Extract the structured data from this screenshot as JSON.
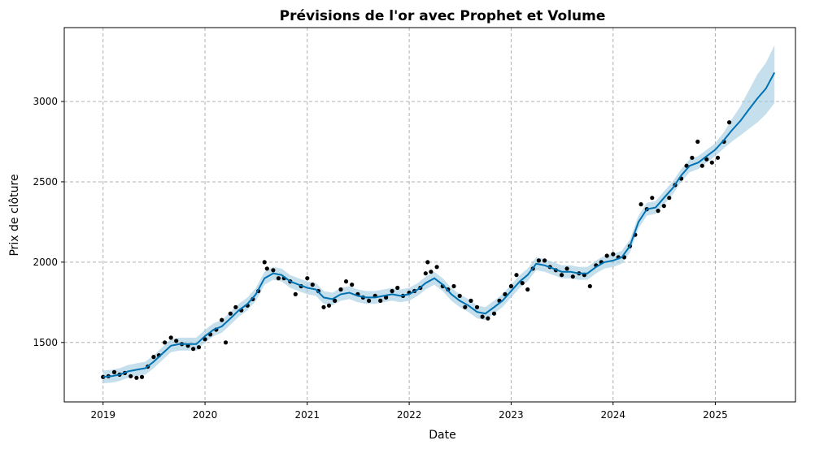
{
  "chart_data": {
    "type": "line",
    "title": "Prévisions de l'or avec Prophet et Volume",
    "xlabel": "Date",
    "ylabel": "Prix de clôture",
    "x_ticks": [
      "2019",
      "2020",
      "2021",
      "2022",
      "2023",
      "2024",
      "2025"
    ],
    "y_ticks": [
      "1500",
      "2000",
      "2500",
      "3000"
    ],
    "xlim": [
      "2018-08-15",
      "2025-10-15"
    ],
    "ylim": [
      1130,
      3460
    ],
    "grid": true,
    "colors": {
      "forecast": "#0072B2",
      "uncertainty": "#9ecae1",
      "observed": "#000000",
      "grid": "#b0b0b0"
    },
    "series": [
      {
        "kind": "forecast",
        "x": [
          "2019-01-01",
          "2019-02-01",
          "2019-03-01",
          "2019-04-01",
          "2019-05-01",
          "2019-06-01",
          "2019-07-01",
          "2019-08-01",
          "2019-09-01",
          "2019-10-01",
          "2019-11-01",
          "2019-12-01",
          "2020-01-01",
          "2020-02-01",
          "2020-03-01",
          "2020-04-01",
          "2020-05-01",
          "2020-06-01",
          "2020-07-01",
          "2020-08-01",
          "2020-09-01",
          "2020-10-01",
          "2020-11-01",
          "2020-12-01",
          "2021-01-01",
          "2021-02-01",
          "2021-03-01",
          "2021-04-01",
          "2021-05-01",
          "2021-06-01",
          "2021-07-01",
          "2021-08-01",
          "2021-09-01",
          "2021-10-01",
          "2021-11-01",
          "2021-12-01",
          "2022-01-01",
          "2022-02-01",
          "2022-03-01",
          "2022-04-01",
          "2022-05-01",
          "2022-06-01",
          "2022-07-01",
          "2022-08-01",
          "2022-09-01",
          "2022-10-01",
          "2022-11-01",
          "2022-12-01",
          "2023-01-01",
          "2023-02-01",
          "2023-03-01",
          "2023-04-01",
          "2023-05-01",
          "2023-06-01",
          "2023-07-01",
          "2023-08-01",
          "2023-09-01",
          "2023-10-01",
          "2023-11-01",
          "2023-12-01",
          "2024-01-01",
          "2024-02-01",
          "2024-03-01",
          "2024-04-01",
          "2024-05-01",
          "2024-06-01",
          "2024-07-01",
          "2024-08-01",
          "2024-09-01",
          "2024-10-01",
          "2024-11-01",
          "2024-12-01",
          "2025-01-01",
          "2025-02-01",
          "2025-03-01",
          "2025-04-01",
          "2025-05-01",
          "2025-06-01",
          "2025-07-01",
          "2025-08-01"
        ],
        "y": [
          1285,
          1290,
          1300,
          1320,
          1330,
          1340,
          1380,
          1430,
          1480,
          1490,
          1490,
          1490,
          1540,
          1580,
          1600,
          1650,
          1700,
          1740,
          1800,
          1900,
          1930,
          1920,
          1880,
          1860,
          1840,
          1830,
          1780,
          1770,
          1800,
          1810,
          1790,
          1780,
          1780,
          1790,
          1800,
          1790,
          1800,
          1830,
          1870,
          1900,
          1860,
          1800,
          1760,
          1730,
          1690,
          1680,
          1720,
          1760,
          1820,
          1880,
          1920,
          1990,
          1980,
          1960,
          1940,
          1940,
          1930,
          1930,
          1970,
          2000,
          2010,
          2030,
          2100,
          2250,
          2330,
          2340,
          2400,
          2460,
          2540,
          2600,
          2620,
          2660,
          2700,
          2760,
          2820,
          2880,
          2950,
          3020,
          3080,
          3180
        ],
        "lower": [
          1245,
          1250,
          1260,
          1280,
          1290,
          1300,
          1340,
          1390,
          1440,
          1450,
          1450,
          1450,
          1500,
          1540,
          1560,
          1610,
          1660,
          1700,
          1760,
          1860,
          1890,
          1880,
          1840,
          1820,
          1800,
          1790,
          1740,
          1730,
          1760,
          1770,
          1750,
          1740,
          1740,
          1750,
          1760,
          1750,
          1760,
          1790,
          1830,
          1860,
          1820,
          1760,
          1720,
          1690,
          1650,
          1640,
          1680,
          1720,
          1780,
          1840,
          1880,
          1950,
          1940,
          1920,
          1900,
          1900,
          1890,
          1890,
          1930,
          1960,
          1970,
          1990,
          2060,
          2210,
          2290,
          2300,
          2360,
          2420,
          2500,
          2560,
          2580,
          2620,
          2660,
          2710,
          2750,
          2790,
          2830,
          2870,
          2920,
          2990
        ],
        "upper": [
          1325,
          1330,
          1340,
          1360,
          1370,
          1380,
          1420,
          1470,
          1520,
          1530,
          1530,
          1530,
          1580,
          1620,
          1640,
          1690,
          1740,
          1780,
          1840,
          1940,
          1970,
          1960,
          1920,
          1900,
          1880,
          1870,
          1820,
          1810,
          1840,
          1850,
          1830,
          1820,
          1820,
          1830,
          1840,
          1830,
          1840,
          1870,
          1910,
          1940,
          1900,
          1840,
          1800,
          1770,
          1730,
          1720,
          1760,
          1800,
          1860,
          1920,
          1960,
          2030,
          2020,
          2000,
          1980,
          1980,
          1970,
          1970,
          2010,
          2040,
          2050,
          2070,
          2140,
          2290,
          2370,
          2380,
          2440,
          2500,
          2580,
          2640,
          2660,
          2700,
          2740,
          2810,
          2890,
          2970,
          3070,
          3170,
          3240,
          3350
        ]
      },
      {
        "kind": "observed",
        "x": [
          "2019-01-01",
          "2019-01-20",
          "2019-02-10",
          "2019-03-01",
          "2019-03-20",
          "2019-04-10",
          "2019-05-01",
          "2019-05-20",
          "2019-06-10",
          "2019-07-01",
          "2019-07-20",
          "2019-08-10",
          "2019-09-01",
          "2019-09-20",
          "2019-10-10",
          "2019-11-01",
          "2019-11-20",
          "2019-12-10",
          "2020-01-01",
          "2020-01-20",
          "2020-02-10",
          "2020-03-01",
          "2020-03-15",
          "2020-04-01",
          "2020-04-20",
          "2020-05-10",
          "2020-06-01",
          "2020-06-20",
          "2020-07-10",
          "2020-08-01",
          "2020-08-10",
          "2020-09-01",
          "2020-09-20",
          "2020-10-10",
          "2020-11-01",
          "2020-11-20",
          "2020-12-10",
          "2021-01-01",
          "2021-01-20",
          "2021-02-10",
          "2021-03-01",
          "2021-03-20",
          "2021-04-10",
          "2021-05-01",
          "2021-05-20",
          "2021-06-10",
          "2021-07-01",
          "2021-07-20",
          "2021-08-10",
          "2021-09-01",
          "2021-09-20",
          "2021-10-10",
          "2021-11-01",
          "2021-11-20",
          "2021-12-10",
          "2022-01-01",
          "2022-01-20",
          "2022-02-10",
          "2022-03-01",
          "2022-03-08",
          "2022-03-20",
          "2022-04-10",
          "2022-05-01",
          "2022-05-20",
          "2022-06-10",
          "2022-07-01",
          "2022-07-20",
          "2022-08-10",
          "2022-09-01",
          "2022-09-20",
          "2022-10-10",
          "2022-11-01",
          "2022-11-20",
          "2022-12-10",
          "2023-01-01",
          "2023-01-20",
          "2023-02-10",
          "2023-03-01",
          "2023-03-20",
          "2023-04-10",
          "2023-05-01",
          "2023-05-20",
          "2023-06-10",
          "2023-07-01",
          "2023-07-20",
          "2023-08-10",
          "2023-09-01",
          "2023-09-20",
          "2023-10-10",
          "2023-11-01",
          "2023-11-20",
          "2023-12-10",
          "2024-01-01",
          "2024-01-20",
          "2024-02-10",
          "2024-03-01",
          "2024-03-20",
          "2024-04-10",
          "2024-05-01",
          "2024-05-20",
          "2024-06-10",
          "2024-07-01",
          "2024-07-20",
          "2024-08-10",
          "2024-09-01",
          "2024-09-20",
          "2024-10-10",
          "2024-10-30",
          "2024-11-15",
          "2024-12-01",
          "2024-12-20",
          "2025-01-10",
          "2025-02-01",
          "2025-02-20"
        ],
        "y": [
          1285,
          1290,
          1315,
          1300,
          1310,
          1290,
          1280,
          1285,
          1350,
          1410,
          1420,
          1500,
          1530,
          1510,
          1490,
          1480,
          1460,
          1470,
          1520,
          1550,
          1580,
          1640,
          1500,
          1680,
          1720,
          1700,
          1730,
          1770,
          1820,
          2000,
          1960,
          1950,
          1900,
          1900,
          1880,
          1800,
          1850,
          1900,
          1860,
          1820,
          1720,
          1730,
          1760,
          1830,
          1880,
          1860,
          1800,
          1780,
          1760,
          1790,
          1760,
          1780,
          1820,
          1840,
          1790,
          1810,
          1820,
          1840,
          1930,
          2000,
          1940,
          1970,
          1850,
          1830,
          1850,
          1790,
          1720,
          1760,
          1720,
          1660,
          1650,
          1680,
          1760,
          1800,
          1850,
          1920,
          1870,
          1830,
          1960,
          2010,
          2010,
          1970,
          1950,
          1920,
          1960,
          1910,
          1930,
          1920,
          1850,
          1980,
          2000,
          2040,
          2050,
          2030,
          2030,
          2100,
          2170,
          2360,
          2330,
          2400,
          2320,
          2350,
          2400,
          2480,
          2520,
          2600,
          2650,
          2750,
          2600,
          2640,
          2620,
          2650,
          2750,
          2870
        ]
      }
    ]
  }
}
